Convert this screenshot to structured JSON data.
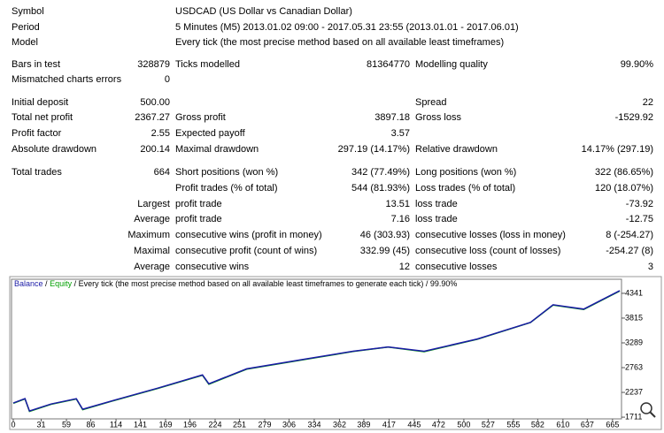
{
  "report": {
    "rows": [
      [
        "Symbol",
        null,
        "USDCAD (US Dollar vs Canadian Dollar)",
        null,
        null,
        null
      ],
      [
        "Period",
        null,
        "5 Minutes (M5) 2013.01.02 09:00 - 2017.05.31 23:55 (2013.01.01 - 2017.06.01)",
        null,
        null,
        null
      ],
      [
        "Model",
        null,
        "Every tick (the most precise method based on all available least timeframes)",
        null,
        null,
        null
      ],
      [
        "Bars in test",
        "328879",
        "Ticks modelled",
        "81364770",
        "Modelling quality",
        "99.90%"
      ],
      [
        "Mismatched charts errors",
        "0",
        null,
        null,
        null,
        null
      ],
      [
        "Initial deposit",
        "500.00",
        null,
        null,
        "Spread",
        "22"
      ],
      [
        "Total net profit",
        "2367.27",
        "Gross profit",
        "3897.18",
        "Gross loss",
        "-1529.92"
      ],
      [
        "Profit factor",
        "2.55",
        "Expected payoff",
        "3.57",
        null,
        null
      ],
      [
        "Absolute drawdown",
        "200.14",
        "Maximal drawdown",
        "297.19 (14.17%)",
        "Relative drawdown",
        "14.17% (297.19)"
      ],
      [
        "Total trades",
        "664",
        "Short positions (won %)",
        "342 (77.49%)",
        "Long positions (won %)",
        "322 (86.65%)"
      ],
      [
        null,
        null,
        "Profit trades (% of total)",
        "544 (81.93%)",
        "Loss trades (% of total)",
        "120 (18.07%)"
      ],
      [
        null,
        "Largest",
        "profit trade",
        "13.51",
        "loss trade",
        "-73.92"
      ],
      [
        null,
        "Average",
        "profit trade",
        "7.16",
        "loss trade",
        "-12.75"
      ],
      [
        null,
        "Maximum",
        "consecutive wins (profit in money)",
        "46 (303.93)",
        "consecutive losses (loss in money)",
        "8 (-254.27)"
      ],
      [
        null,
        "Maximal",
        "consecutive profit (count of wins)",
        "332.99 (45)",
        "consecutive loss (count of losses)",
        "-254.27 (8)"
      ],
      [
        null,
        "Average",
        "consecutive wins",
        "12",
        "consecutive losses",
        "3"
      ]
    ]
  },
  "chart_data": {
    "type": "line",
    "separator": "/",
    "subtitle": "Every tick (the most precise method based on all available least timeframes to generate each tick)",
    "quality": "99.90%",
    "x": [
      0,
      13,
      18,
      42,
      70,
      77,
      111,
      160,
      210,
      217,
      259,
      323,
      377,
      416,
      456,
      515,
      574,
      599,
      633,
      673
    ],
    "series": [
      {
        "name": "Balance",
        "color": "#1a1aa6",
        "values": [
          2010,
          2105,
          1842,
          1990,
          2103,
          1879,
          2066,
          2327,
          2607,
          2420,
          2737,
          2942,
          3110,
          3203,
          3110,
          3371,
          3725,
          4098,
          4005,
          4397
        ]
      },
      {
        "name": "Equity",
        "color": "#00a000",
        "values": [
          2005,
          2100,
          1835,
          1985,
          2098,
          1870,
          2060,
          2320,
          2600,
          2410,
          2730,
          2935,
          3105,
          3198,
          3102,
          3365,
          3720,
          4090,
          3998,
          4390
        ]
      }
    ],
    "xlim": [
      0,
      673
    ],
    "ylim": [
      1675,
      4640
    ],
    "xticks": [
      0,
      31,
      59,
      86,
      114,
      141,
      169,
      196,
      224,
      251,
      279,
      306,
      334,
      362,
      389,
      417,
      445,
      472,
      500,
      527,
      555,
      582,
      610,
      637,
      665
    ],
    "yticks": [
      1711,
      2237,
      2763,
      3289,
      3815,
      4341
    ]
  }
}
